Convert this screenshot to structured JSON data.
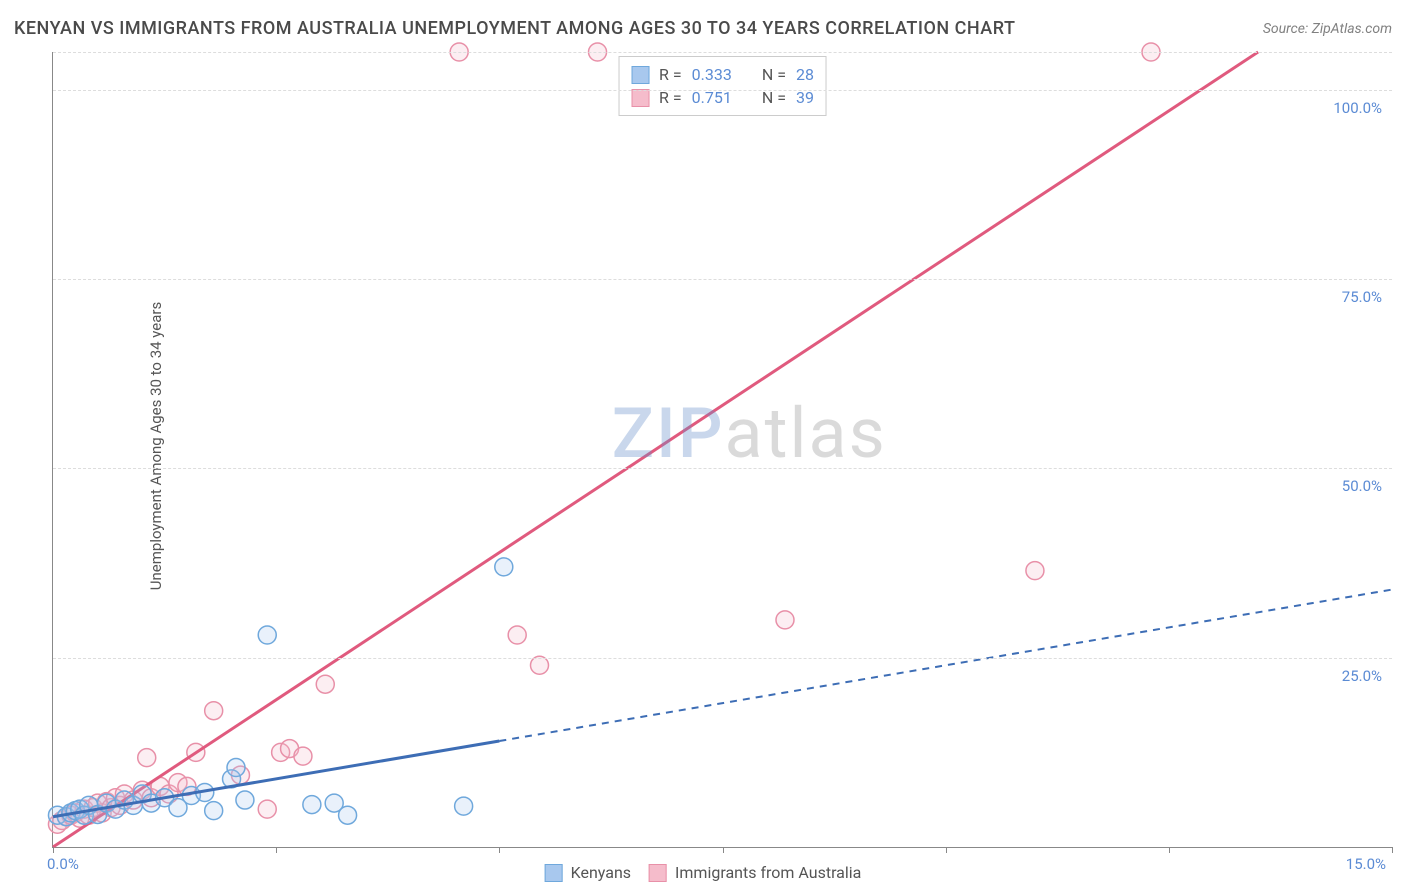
{
  "title": "KENYAN VS IMMIGRANTS FROM AUSTRALIA UNEMPLOYMENT AMONG AGES 30 TO 34 YEARS CORRELATION CHART",
  "source_prefix": "Source: ",
  "source_name": "ZipAtlas.com",
  "y_axis_label": "Unemployment Among Ages 30 to 34 years",
  "watermark": {
    "z": "ZIP",
    "rest": "atlas"
  },
  "chart": {
    "type": "scatter",
    "xlim": [
      0,
      15
    ],
    "ylim": [
      0,
      105
    ],
    "x_tick_labels": {
      "left": "0.0%",
      "right": "15.0%"
    },
    "x_ticks_major": [
      0,
      2.5,
      5.0,
      7.5,
      10.0,
      12.5,
      15.0
    ],
    "y_gridlines": [
      25,
      50,
      75,
      100,
      105
    ],
    "y_tick_labels": [
      "25.0%",
      "50.0%",
      "75.0%",
      "100.0%"
    ],
    "grid_color": "#dddddd",
    "axis_color": "#888888",
    "background_color": "#ffffff",
    "marker_radius": 9,
    "marker_stroke_width": 1.5,
    "marker_fill_opacity": 0.25,
    "trend_line_width": 3
  },
  "series": {
    "kenyans": {
      "label": "Kenyans",
      "color_stroke": "#6fa8dc",
      "color_fill": "#a8c8ee",
      "trend_color": "#3d6db5",
      "trend_solid_end_x": 5.0,
      "stats": {
        "R": "0.333",
        "N": "28"
      },
      "trend": {
        "x1": 0,
        "y1": 4,
        "x2": 15,
        "y2": 34
      },
      "points": [
        [
          0.05,
          4.2
        ],
        [
          0.15,
          4.0
        ],
        [
          0.2,
          4.5
        ],
        [
          0.25,
          4.8
        ],
        [
          0.3,
          5.0
        ],
        [
          0.35,
          4.2
        ],
        [
          0.4,
          5.5
        ],
        [
          0.5,
          4.3
        ],
        [
          0.6,
          5.8
        ],
        [
          0.7,
          5.0
        ],
        [
          0.8,
          6.2
        ],
        [
          0.9,
          5.5
        ],
        [
          1.0,
          7.0
        ],
        [
          1.1,
          5.8
        ],
        [
          1.25,
          6.5
        ],
        [
          1.4,
          5.2
        ],
        [
          1.55,
          6.8
        ],
        [
          1.7,
          7.2
        ],
        [
          1.8,
          4.8
        ],
        [
          2.0,
          9.0
        ],
        [
          2.05,
          10.5
        ],
        [
          2.15,
          6.2
        ],
        [
          2.4,
          28.0
        ],
        [
          2.9,
          5.6
        ],
        [
          3.15,
          5.8
        ],
        [
          3.3,
          4.2
        ],
        [
          4.6,
          5.4
        ],
        [
          5.05,
          37.0
        ]
      ]
    },
    "australia": {
      "label": "Immigrants from Australia",
      "color_stroke": "#e890a8",
      "color_fill": "#f5bccb",
      "trend_color": "#e05a7e",
      "stats": {
        "R": "0.751",
        "N": "39"
      },
      "trend": {
        "x1": 0,
        "y1": 0,
        "x2": 13.5,
        "y2": 105
      },
      "points": [
        [
          0.05,
          3.0
        ],
        [
          0.1,
          3.5
        ],
        [
          0.15,
          4.0
        ],
        [
          0.2,
          4.2
        ],
        [
          0.25,
          4.5
        ],
        [
          0.3,
          3.8
        ],
        [
          0.35,
          5.0
        ],
        [
          0.4,
          4.2
        ],
        [
          0.45,
          5.2
        ],
        [
          0.5,
          5.8
        ],
        [
          0.55,
          4.5
        ],
        [
          0.6,
          6.0
        ],
        [
          0.65,
          5.2
        ],
        [
          0.7,
          6.5
        ],
        [
          0.75,
          5.5
        ],
        [
          0.8,
          7.0
        ],
        [
          0.9,
          6.2
        ],
        [
          1.0,
          7.5
        ],
        [
          1.05,
          11.8
        ],
        [
          1.1,
          6.5
        ],
        [
          1.2,
          8.0
        ],
        [
          1.3,
          7.0
        ],
        [
          1.4,
          8.5
        ],
        [
          1.5,
          8.0
        ],
        [
          1.6,
          12.5
        ],
        [
          1.8,
          18.0
        ],
        [
          2.1,
          9.5
        ],
        [
          2.4,
          5.0
        ],
        [
          2.55,
          12.5
        ],
        [
          2.65,
          13.0
        ],
        [
          2.8,
          12.0
        ],
        [
          3.05,
          21.5
        ],
        [
          4.55,
          105
        ],
        [
          5.2,
          28.0
        ],
        [
          5.45,
          24.0
        ],
        [
          6.1,
          105
        ],
        [
          8.2,
          30.0
        ],
        [
          11.0,
          36.5
        ],
        [
          12.3,
          105
        ]
      ]
    }
  },
  "stats_legend_labels": {
    "R": "R =",
    "N": "N ="
  }
}
